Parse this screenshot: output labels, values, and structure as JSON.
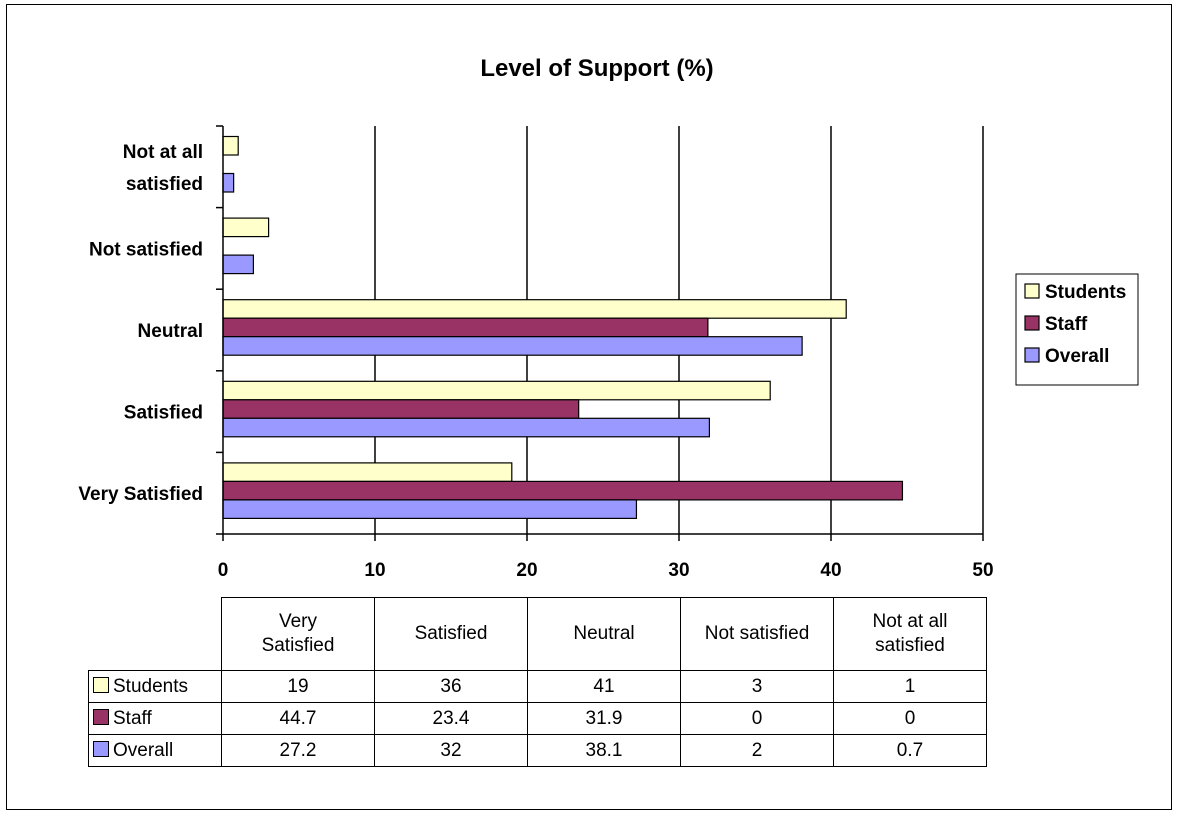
{
  "chart_data": {
    "type": "bar",
    "orientation": "horizontal",
    "title": "Level of Support (%)",
    "categories": [
      "Very Satisfied",
      "Satisfied",
      "Neutral",
      "Not satisfied",
      "Not at all satisfied"
    ],
    "category_labels": {
      "Very Satisfied": [
        "Very Satisfied"
      ],
      "Satisfied": [
        "Satisfied"
      ],
      "Neutral": [
        "Neutral"
      ],
      "Not satisfied": [
        "Not satisfied"
      ],
      "Not at all satisfied": [
        "Not at all",
        "satisfied"
      ]
    },
    "series": [
      {
        "name": "Students",
        "color": "#FFFFCC",
        "values": [
          19,
          36,
          41,
          3,
          1
        ]
      },
      {
        "name": "Staff",
        "color": "#993366",
        "values": [
          44.7,
          23.4,
          31.9,
          0,
          0
        ]
      },
      {
        "name": "Overall",
        "color": "#9999FF",
        "values": [
          27.2,
          32,
          38.1,
          2,
          0.7
        ]
      }
    ],
    "xlim": [
      0,
      50
    ],
    "xticks": [
      0,
      10,
      20,
      30,
      40,
      50
    ],
    "grid": true,
    "legend_position": "right",
    "data_table": {
      "headers": [
        "Very Satisfied",
        "Satisfied",
        "Neutral",
        "Not satisfied",
        "Not at all satisfied"
      ],
      "rows": [
        {
          "name": "Students",
          "values": [
            "19",
            "36",
            "41",
            "3",
            "1"
          ]
        },
        {
          "name": "Staff",
          "values": [
            "44.7",
            "23.4",
            "31.9",
            "0",
            "0"
          ]
        },
        {
          "name": "Overall",
          "values": [
            "27.2",
            "32",
            "38.1",
            "2",
            "0.7"
          ]
        }
      ]
    }
  }
}
